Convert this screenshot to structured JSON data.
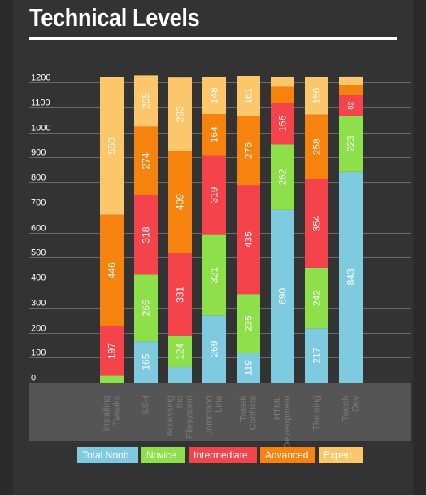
{
  "page": {
    "title": "Technical Levels"
  },
  "colors": {
    "page_bg": "#2b2b2b",
    "panel_bg": "#333333",
    "grid": "#6a6a6a",
    "axis_text": "#ffffff",
    "label_area": "#555555",
    "category_text": "#7a7a7a"
  },
  "legend": [
    {
      "label": "Total Noob",
      "color": "#7ecbe0"
    },
    {
      "label": "Novice",
      "color": "#8ee04a"
    },
    {
      "label": "Intermediate",
      "color": "#f5434b"
    },
    {
      "label": "Advanced",
      "color": "#f7830f"
    },
    {
      "label": "Expert",
      "color": "#fcc76a"
    }
  ],
  "chart_data": {
    "type": "bar",
    "stacked": true,
    "title": "Technical Levels",
    "xlabel": "",
    "ylabel": "",
    "ylim": [
      0,
      1200
    ],
    "yticks": [
      0,
      100,
      200,
      300,
      400,
      500,
      600,
      700,
      800,
      900,
      1000,
      1100,
      1200
    ],
    "grid": true,
    "legend_position": "bottom",
    "categories": [
      [
        "Installing",
        "Tweaks"
      ],
      [
        "SSH"
      ],
      [
        "Accessing",
        "the",
        "Filesystem"
      ],
      [
        "Command",
        "Line"
      ],
      [
        "Tweak",
        "Conflicts"
      ],
      [
        "HTML",
        "Development"
      ],
      [
        "Theming"
      ],
      [
        "Tweak",
        "Dev"
      ]
    ],
    "series": [
      {
        "name": "Total Noob",
        "color": "#7ecbe0",
        "values": [
          0,
          165,
          62,
          269,
          119,
          690,
          217,
          843
        ]
      },
      {
        "name": "Novice",
        "color": "#8ee04a",
        "values": [
          28,
          266,
          124,
          321,
          235,
          262,
          242,
          223
        ]
      },
      {
        "name": "Intermediate",
        "color": "#f5434b",
        "values": [
          197,
          318,
          331,
          319,
          435,
          166,
          354,
          82
        ]
      },
      {
        "name": "Advanced",
        "color": "#f7830f",
        "values": [
          446,
          274,
          409,
          164,
          276,
          64,
          258,
          40
        ]
      },
      {
        "name": "Expert",
        "color": "#fcc76a",
        "values": [
          550,
          205,
          293,
          148,
          161,
          40,
          150,
          35
        ]
      }
    ],
    "labels": [
      [
        "",
        "",
        "197",
        "446",
        "550"
      ],
      [
        "165",
        "266",
        "318",
        "274",
        "205"
      ],
      [
        "",
        "124",
        "331",
        "409",
        "293"
      ],
      [
        "269",
        "321",
        "319",
        "164",
        "148"
      ],
      [
        "119",
        "235",
        "435",
        "276",
        "161"
      ],
      [
        "690",
        "262",
        "166",
        "",
        ""
      ],
      [
        "217",
        "242",
        "354",
        "258",
        "150"
      ],
      [
        "843",
        "223",
        "82",
        "",
        ""
      ]
    ]
  }
}
